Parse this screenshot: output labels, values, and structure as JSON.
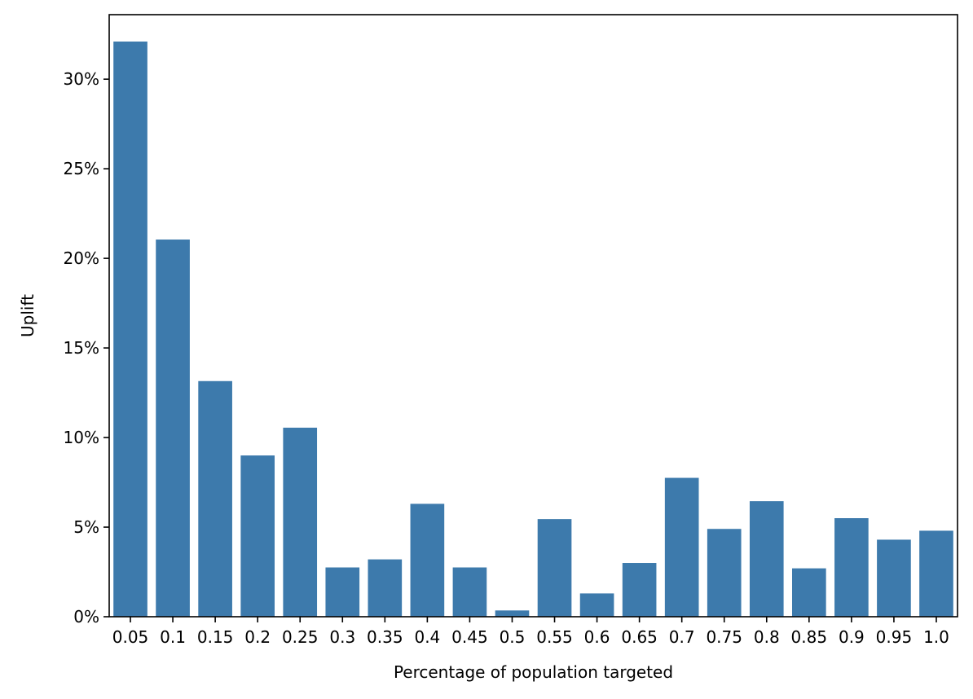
{
  "chart_data": {
    "type": "bar",
    "title": "",
    "xlabel": "Percentage of population targeted",
    "ylabel": "Uplift",
    "categories": [
      "0.05",
      "0.1",
      "0.15",
      "0.2",
      "0.25",
      "0.3",
      "0.35",
      "0.4",
      "0.45",
      "0.5",
      "0.55",
      "0.6",
      "0.65",
      "0.7",
      "0.75",
      "0.8",
      "0.85",
      "0.9",
      "0.95",
      "1.0"
    ],
    "values": [
      32.1,
      21.05,
      13.15,
      9.0,
      10.55,
      2.75,
      3.2,
      6.3,
      2.75,
      0.35,
      5.45,
      1.3,
      3.0,
      7.75,
      4.9,
      6.45,
      2.7,
      5.5,
      4.3,
      4.8
    ],
    "ylim": [
      0,
      33.6
    ],
    "yticks": [
      0,
      5,
      10,
      15,
      20,
      25,
      30
    ],
    "ytick_labels": [
      "0%",
      "5%",
      "10%",
      "15%",
      "20%",
      "25%",
      "30%"
    ],
    "grid": false,
    "bar_color": "#3d7aac"
  }
}
